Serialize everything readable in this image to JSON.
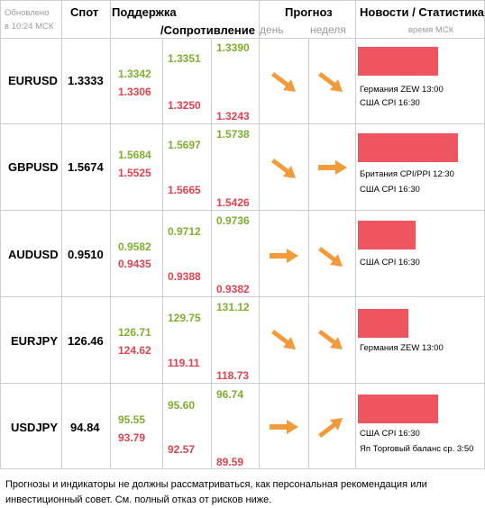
{
  "header": {
    "updated": "Обновлено",
    "updated_time": "в 10:24 МСК",
    "spot": "Спот",
    "support": "Поддержка",
    "resistance": "/Сопротивление",
    "forecast": "Прогноз",
    "day": "день",
    "week": "неделя",
    "news": "Новости / Статистика",
    "news_time": "время МСК"
  },
  "colors": {
    "green": "#7fae2e",
    "red": "#e0424f",
    "bar": "#ef5561",
    "arrow": "#f39a3a"
  },
  "rows": [
    {
      "symbol": "EURUSD",
      "spot": "1.3333",
      "s1": "1.3342",
      "s1b": "1.3306",
      "s2": "1.3351",
      "s2b": "1.3250",
      "s3": "1.3390",
      "s3b": "1.3243",
      "day": "down-right-arrow",
      "week": "down-right-arrow",
      "bar_fraction": 0.8,
      "news": [
        "Германия ZEW 13:00",
        "США CPI 16:30"
      ]
    },
    {
      "symbol": "GBPUSD",
      "spot": "1.5674",
      "s1": "1.5684",
      "s1b": "1.5525",
      "s2": "1.5697",
      "s2b": "1.5665",
      "s3": "1.5738",
      "s3b": "1.5426",
      "day": "down-right-arrow",
      "week": "right-arrow",
      "bar_fraction": 1.0,
      "news": [
        "Британия CPI/PPI 12:30",
        "США CPI 16:30"
      ]
    },
    {
      "symbol": "AUDUSD",
      "spot": "0.9510",
      "s1": "0.9582",
      "s1b": "0.9435",
      "s2": "0.9712",
      "s2b": "0.9388",
      "s3": "0.9736",
      "s3b": "0.9382",
      "day": "right-arrow",
      "week": "down-right-arrow",
      "bar_fraction": 0.58,
      "news": [
        "США CPI 16:30"
      ]
    },
    {
      "symbol": "EURJPY",
      "spot": "126.46",
      "s1": "126.71",
      "s1b": "124.62",
      "s2": "129.75",
      "s2b": "119.11",
      "s3": "131.12",
      "s3b": "118.73",
      "day": "down-right-arrow",
      "week": "down-right-arrow",
      "bar_fraction": 0.5,
      "news": [
        "Германия ZEW 13:00"
      ]
    },
    {
      "symbol": "USDJPY",
      "spot": "94.84",
      "s1": "95.55",
      "s1b": "93.79",
      "s2": "95.60",
      "s2b": "92.57",
      "s3": "96.74",
      "s3b": "89.59",
      "day": "right-arrow",
      "week": "up-right-arrow",
      "bar_fraction": 0.8,
      "news": [
        "США CPI 16:30",
        "Яп Торговый баланс ср. 3:50"
      ]
    }
  ],
  "footer": {
    "line1": "Прогнозы и индикаторы не должны рассматриваться, как персональная рекомендация или",
    "line2": "инвестиционный совет. См. полный отказ от рисков ниже."
  }
}
